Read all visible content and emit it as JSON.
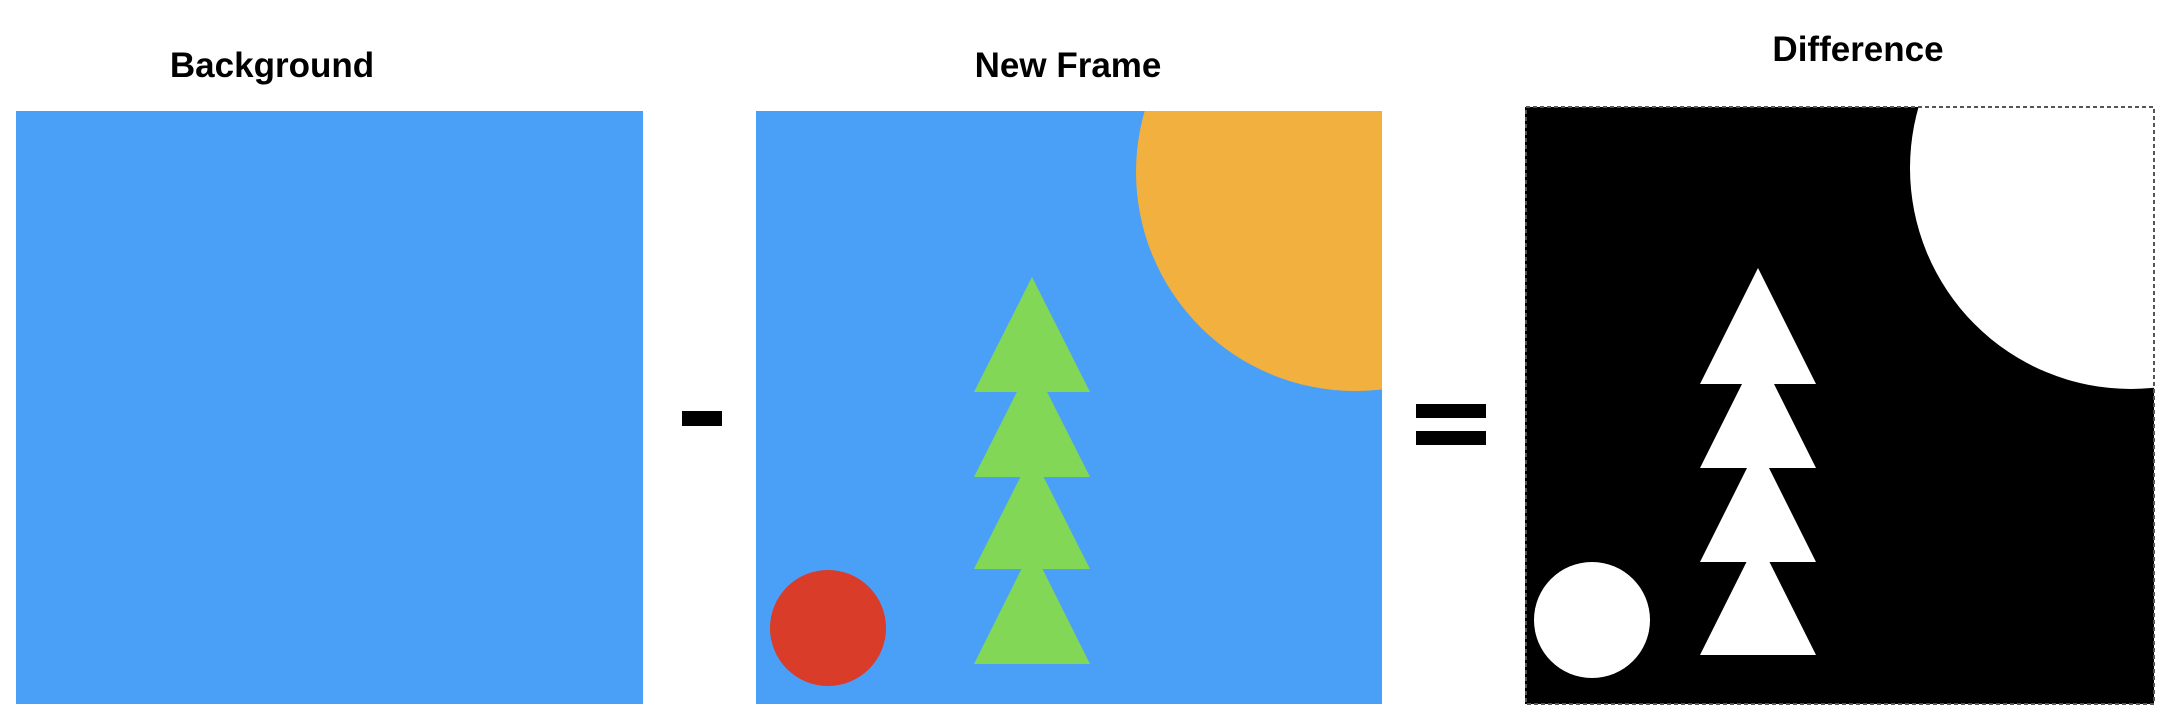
{
  "titles": {
    "background": "Background",
    "new_frame": "New Frame",
    "difference": "Difference"
  },
  "colors": {
    "sky": "#4A9FF7",
    "sun": "#F2B13E",
    "ball": "#D93C28",
    "tree": "#83D756",
    "diff_background": "#000000",
    "diff_foreground": "#FFFFFF"
  },
  "panels": [
    {
      "name": "background-panel",
      "content": [
        "sky"
      ]
    },
    {
      "name": "new-frame-panel",
      "content": [
        "sky",
        "sun",
        "ball",
        "tree"
      ]
    },
    {
      "name": "difference-panel",
      "content": [
        "diff_background",
        "sun",
        "ball",
        "tree"
      ]
    }
  ],
  "operators": [
    "minus",
    "equals"
  ]
}
